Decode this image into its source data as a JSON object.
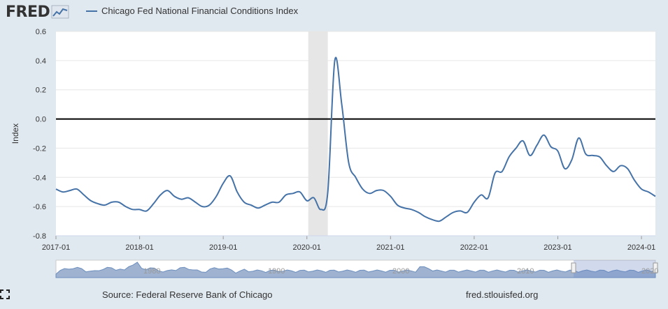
{
  "brand": "FRED",
  "colors": {
    "series": "#4572a7",
    "background": "#e1e9f0",
    "recession": "#e6e6e6",
    "zero_line": "#000000"
  },
  "icons": {
    "logo_chart": "line-chart-icon",
    "expand": "expand-icon"
  },
  "source": "Source: Federal Reserve Bank of Chicago",
  "site": "fred.stlouisfed.org",
  "chart_data": {
    "type": "line",
    "series": [
      {
        "name": "Chicago Fed National Financial Conditions Index",
        "x": [
          "2017-01",
          "2017-02",
          "2017-03",
          "2017-04",
          "2017-05",
          "2017-06",
          "2017-07",
          "2017-08",
          "2017-09",
          "2017-10",
          "2017-11",
          "2017-12",
          "2018-01",
          "2018-02",
          "2018-03",
          "2018-04",
          "2018-05",
          "2018-06",
          "2018-07",
          "2018-08",
          "2018-09",
          "2018-10",
          "2018-11",
          "2018-12",
          "2019-01",
          "2019-02",
          "2019-03",
          "2019-04",
          "2019-05",
          "2019-06",
          "2019-07",
          "2019-08",
          "2019-09",
          "2019-10",
          "2019-11",
          "2019-12",
          "2020-01",
          "2020-02",
          "2020-03",
          "2020-04",
          "2020-05",
          "2020-06",
          "2020-07",
          "2020-08",
          "2020-09",
          "2020-10",
          "2020-11",
          "2020-12",
          "2021-01",
          "2021-02",
          "2021-03",
          "2021-04",
          "2021-05",
          "2021-06",
          "2021-07",
          "2021-08",
          "2021-09",
          "2021-10",
          "2021-11",
          "2021-12",
          "2022-01",
          "2022-02",
          "2022-03",
          "2022-04",
          "2022-05",
          "2022-06",
          "2022-07",
          "2022-08",
          "2022-09",
          "2022-10",
          "2022-11",
          "2022-12",
          "2023-01",
          "2023-02",
          "2023-03",
          "2023-04",
          "2023-05",
          "2023-06",
          "2023-07",
          "2023-08",
          "2023-09",
          "2023-10",
          "2023-11",
          "2023-12",
          "2024-01",
          "2024-02",
          "2024-03"
        ],
        "values": [
          -0.48,
          -0.5,
          -0.49,
          -0.48,
          -0.52,
          -0.56,
          -0.58,
          -0.59,
          -0.57,
          -0.57,
          -0.6,
          -0.62,
          -0.62,
          -0.63,
          -0.58,
          -0.52,
          -0.49,
          -0.53,
          -0.55,
          -0.54,
          -0.57,
          -0.6,
          -0.59,
          -0.53,
          -0.44,
          -0.39,
          -0.5,
          -0.57,
          -0.59,
          -0.61,
          -0.59,
          -0.57,
          -0.57,
          -0.52,
          -0.51,
          -0.5,
          -0.56,
          -0.54,
          -0.62,
          -0.5,
          0.4,
          0.1,
          -0.3,
          -0.4,
          -0.48,
          -0.51,
          -0.49,
          -0.49,
          -0.53,
          -0.59,
          -0.61,
          -0.62,
          -0.64,
          -0.67,
          -0.69,
          -0.7,
          -0.67,
          -0.64,
          -0.63,
          -0.64,
          -0.57,
          -0.52,
          -0.54,
          -0.37,
          -0.36,
          -0.26,
          -0.2,
          -0.15,
          -0.25,
          -0.18,
          -0.11,
          -0.19,
          -0.22,
          -0.34,
          -0.28,
          -0.13,
          -0.24,
          -0.25,
          -0.26,
          -0.32,
          -0.36,
          -0.32,
          -0.34,
          -0.42,
          -0.48,
          -0.5,
          -0.53
        ]
      }
    ],
    "ylabel": "Index",
    "ylim": [
      -0.8,
      0.6
    ],
    "yticks": [
      "0.6",
      "0.4",
      "0.2",
      "0.0",
      "-0.2",
      "-0.4",
      "-0.6",
      "-0.8"
    ],
    "xticks": [
      "2017-01",
      "2018-01",
      "2019-01",
      "2020-01",
      "2021-01",
      "2022-01",
      "2023-01",
      "2024-01"
    ],
    "recession": [
      "2020-02",
      "2020-04"
    ],
    "grid": true,
    "legend": "top-left",
    "navigator_labels": [
      "1980",
      "1990",
      "2000",
      "2010",
      "2020"
    ]
  }
}
